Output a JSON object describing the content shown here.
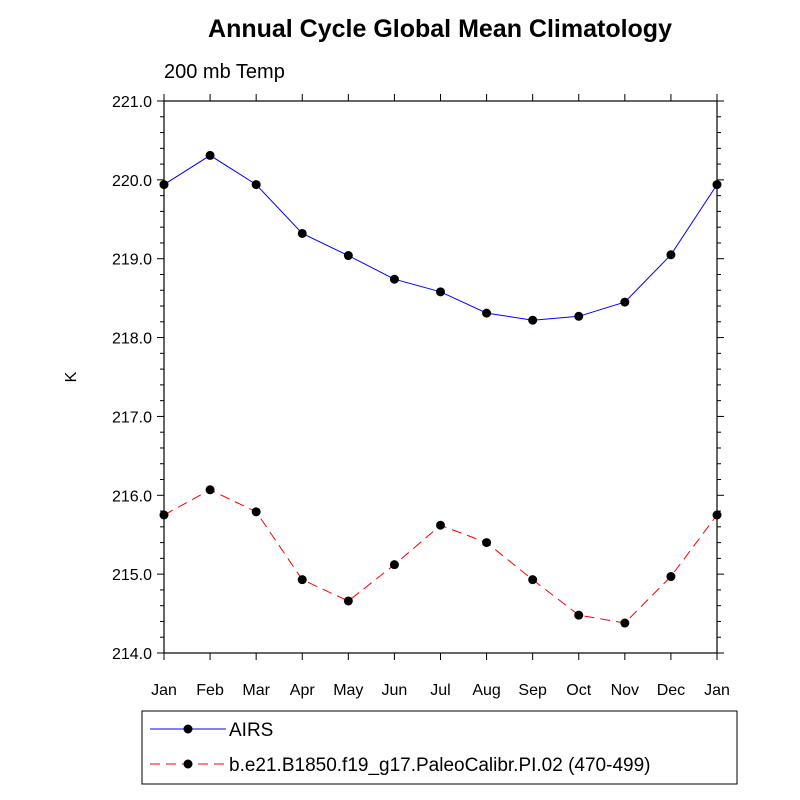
{
  "chart_data": {
    "type": "line",
    "title": "Annual Cycle Global Mean Climatology",
    "subtitle": "200 mb Temp",
    "ylabel": "K",
    "xlabel": "",
    "categories": [
      "Jan",
      "Feb",
      "Mar",
      "Apr",
      "May",
      "Jun",
      "Jul",
      "Aug",
      "Sep",
      "Oct",
      "Nov",
      "Dec",
      "Jan"
    ],
    "ylim": [
      214.0,
      221.0
    ],
    "yticks": [
      "214.0",
      "215.0",
      "216.0",
      "217.0",
      "218.0",
      "219.0",
      "220.0",
      "221.0"
    ],
    "grid": false,
    "legend_position": "bottom",
    "series": [
      {
        "name": "AIRS",
        "color": "#0000ff",
        "line_style": "solid",
        "marker": "circle",
        "values": [
          219.94,
          220.31,
          219.94,
          219.32,
          219.04,
          218.74,
          218.58,
          218.31,
          218.22,
          218.27,
          218.45,
          219.05,
          219.94
        ]
      },
      {
        "name": "b.e21.B1850.f19_g17.PaleoCalibr.PI.02 (470-499)",
        "color": "#ff0000",
        "line_style": "dashed",
        "marker": "circle",
        "values": [
          215.75,
          216.07,
          215.79,
          214.93,
          214.66,
          215.12,
          215.62,
          215.4,
          214.93,
          214.48,
          214.38,
          214.97,
          215.75
        ]
      }
    ]
  }
}
